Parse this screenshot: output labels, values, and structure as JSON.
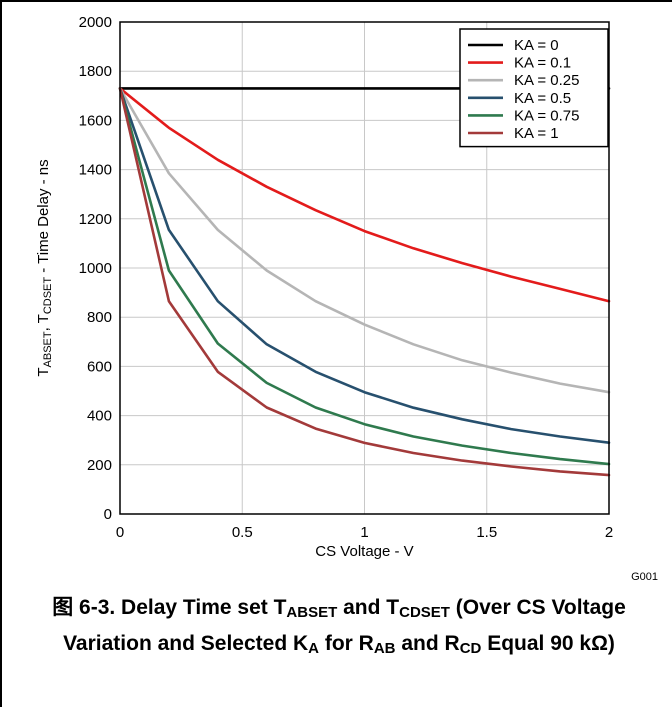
{
  "chart_data": {
    "type": "line",
    "xlabel": "CS Voltage - V",
    "ylabel": {
      "parts": [
        {
          "text": "T",
          "sub": false
        },
        {
          "text": "ABSET",
          "sub": true
        },
        {
          "text": ", T",
          "sub": false
        },
        {
          "text": "CDSET",
          "sub": true
        },
        {
          "text": " - Time Delay - ns",
          "sub": false
        }
      ]
    },
    "xlim": [
      0,
      2
    ],
    "ylim": [
      0,
      2000
    ],
    "x_ticks": [
      0,
      0.5,
      1,
      1.5,
      2
    ],
    "x_tick_labels": [
      "0",
      "0.5",
      "1",
      "1.5",
      "2"
    ],
    "y_ticks": [
      0,
      200,
      400,
      600,
      800,
      1000,
      1200,
      1400,
      1600,
      1800,
      2000
    ],
    "y_tick_labels": [
      "0",
      "200",
      "400",
      "600",
      "800",
      "1000",
      "1200",
      "1400",
      "1600",
      "1800",
      "2000"
    ],
    "grid": true,
    "legend_position": "top-right",
    "code": "G001",
    "series": [
      {
        "name": "KA = 0",
        "color": "#000000",
        "points": [
          [
            0,
            1730
          ],
          [
            2,
            1730
          ]
        ]
      },
      {
        "name": "KA = 0.1",
        "color": "#e31b1b",
        "points": [
          [
            0,
            1730
          ],
          [
            0.2,
            1570
          ],
          [
            0.4,
            1440
          ],
          [
            0.6,
            1330
          ],
          [
            0.8,
            1235
          ],
          [
            1,
            1150
          ],
          [
            1.2,
            1080
          ],
          [
            1.4,
            1020
          ],
          [
            1.6,
            965
          ],
          [
            1.8,
            915
          ],
          [
            2,
            865
          ]
        ]
      },
      {
        "name": "KA = 0.25",
        "color": "#b5b5b5",
        "points": [
          [
            0,
            1730
          ],
          [
            0.2,
            1385
          ],
          [
            0.4,
            1155
          ],
          [
            0.6,
            990
          ],
          [
            0.8,
            865
          ],
          [
            1,
            770
          ],
          [
            1.2,
            690
          ],
          [
            1.4,
            625
          ],
          [
            1.6,
            575
          ],
          [
            1.8,
            530
          ],
          [
            2,
            495
          ]
        ]
      },
      {
        "name": "KA = 0.5",
        "color": "#27506e",
        "points": [
          [
            0,
            1730
          ],
          [
            0.2,
            1155
          ],
          [
            0.4,
            865
          ],
          [
            0.6,
            690
          ],
          [
            0.8,
            578
          ],
          [
            1,
            495
          ],
          [
            1.2,
            432
          ],
          [
            1.4,
            385
          ],
          [
            1.6,
            345
          ],
          [
            1.8,
            315
          ],
          [
            2,
            290
          ]
        ]
      },
      {
        "name": "KA = 0.75",
        "color": "#2f7a4e",
        "points": [
          [
            0,
            1730
          ],
          [
            0.2,
            990
          ],
          [
            0.4,
            693
          ],
          [
            0.6,
            533
          ],
          [
            0.8,
            433
          ],
          [
            1,
            365
          ],
          [
            1.2,
            315
          ],
          [
            1.4,
            278
          ],
          [
            1.6,
            248
          ],
          [
            1.8,
            223
          ],
          [
            2,
            203
          ]
        ]
      },
      {
        "name": "KA = 1",
        "color": "#a33a3a",
        "points": [
          [
            0,
            1730
          ],
          [
            0.2,
            865
          ],
          [
            0.4,
            578
          ],
          [
            0.6,
            433
          ],
          [
            0.8,
            347
          ],
          [
            1,
            289
          ],
          [
            1.2,
            248
          ],
          [
            1.4,
            217
          ],
          [
            1.6,
            193
          ],
          [
            1.8,
            173
          ],
          [
            2,
            158
          ]
        ]
      }
    ]
  },
  "caption": {
    "parts": [
      {
        "text": "图 6-3. Delay Time set T",
        "sub": false
      },
      {
        "text": "ABSET",
        "sub": true
      },
      {
        "text": " and T",
        "sub": false
      },
      {
        "text": "CDSET",
        "sub": true
      },
      {
        "text": " (Over CS Voltage Variation and Selected K",
        "sub": false
      },
      {
        "text": "A",
        "sub": true
      },
      {
        "text": " for R",
        "sub": false
      },
      {
        "text": "AB",
        "sub": true
      },
      {
        "text": " and R",
        "sub": false
      },
      {
        "text": "CD",
        "sub": true
      },
      {
        "text": " Equal 90 kΩ)",
        "sub": false
      }
    ]
  }
}
